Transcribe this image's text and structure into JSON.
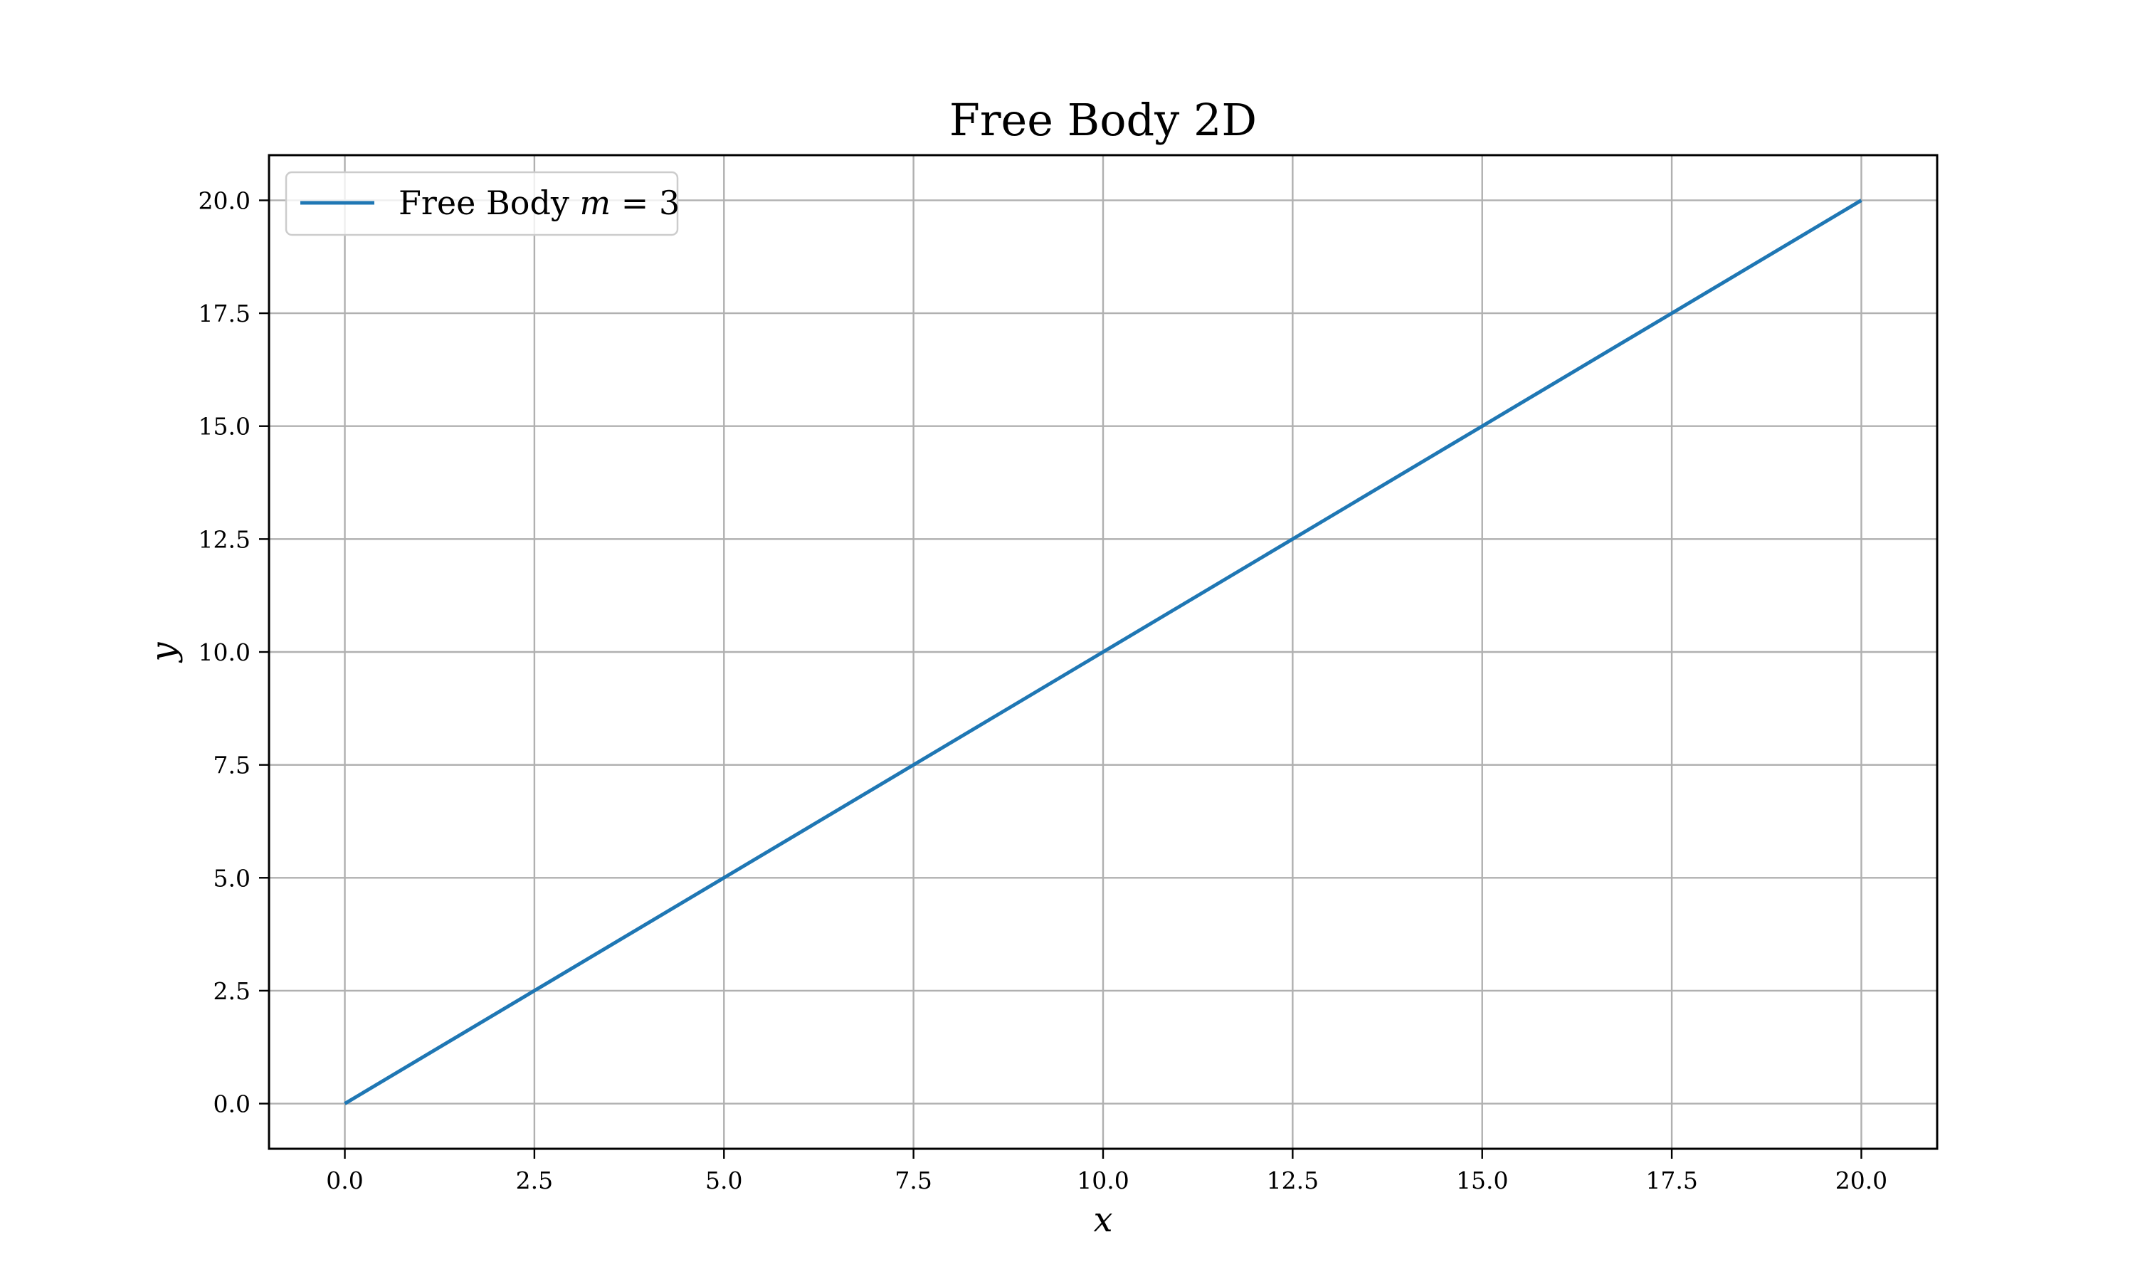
{
  "chart_data": {
    "type": "line",
    "title": "Free Body 2D",
    "xlabel": "x",
    "ylabel": "y",
    "xlim": [
      -1.0,
      21.0
    ],
    "ylim": [
      -1.0,
      21.0
    ],
    "xticks": [
      0.0,
      2.5,
      5.0,
      7.5,
      10.0,
      12.5,
      15.0,
      17.5,
      20.0
    ],
    "yticks": [
      0.0,
      2.5,
      5.0,
      7.5,
      10.0,
      12.5,
      15.0,
      17.5,
      20.0
    ],
    "xtick_labels": [
      "0.0",
      "2.5",
      "5.0",
      "7.5",
      "10.0",
      "12.5",
      "15.0",
      "17.5",
      "20.0"
    ],
    "ytick_labels": [
      "0.0",
      "2.5",
      "5.0",
      "7.5",
      "10.0",
      "12.5",
      "15.0",
      "17.5",
      "20.0"
    ],
    "grid": true,
    "legend": {
      "placement": "upper-left"
    },
    "series": [
      {
        "name": "Free Body m = 3",
        "name_prefix": "Free Body ",
        "name_math_var": "m",
        "name_math_rest": " = 3",
        "color": "#1f77b4",
        "x": [
          0,
          2.5,
          5,
          7.5,
          10,
          12.5,
          15,
          17.5,
          20
        ],
        "y": [
          0,
          2.5,
          5,
          7.5,
          10,
          12.5,
          15,
          17.5,
          20
        ]
      }
    ]
  }
}
